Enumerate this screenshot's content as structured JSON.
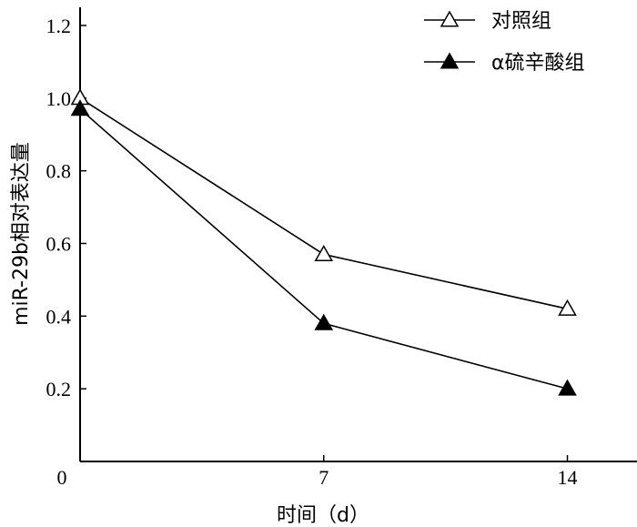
{
  "chart_data": {
    "type": "line",
    "title": "",
    "xlabel": "时间（d）",
    "ylabel": "miR-29b相对表达量",
    "x": [
      0,
      7,
      14
    ],
    "x_ticks": [
      "0",
      "7",
      "14"
    ],
    "y_ticks": [
      "0.2",
      "0.4",
      "0.6",
      "0.8",
      "1.0",
      "1.2"
    ],
    "xlim": [
      0,
      16
    ],
    "ylim": [
      0,
      1.25
    ],
    "grid": false,
    "legend_position": "top-right",
    "series": [
      {
        "name": "对照组",
        "marker": "open-triangle",
        "values": [
          1.0,
          0.57,
          0.42
        ]
      },
      {
        "name": "α硫辛酸组",
        "marker": "filled-triangle",
        "values": [
          0.97,
          0.38,
          0.2
        ]
      }
    ]
  }
}
